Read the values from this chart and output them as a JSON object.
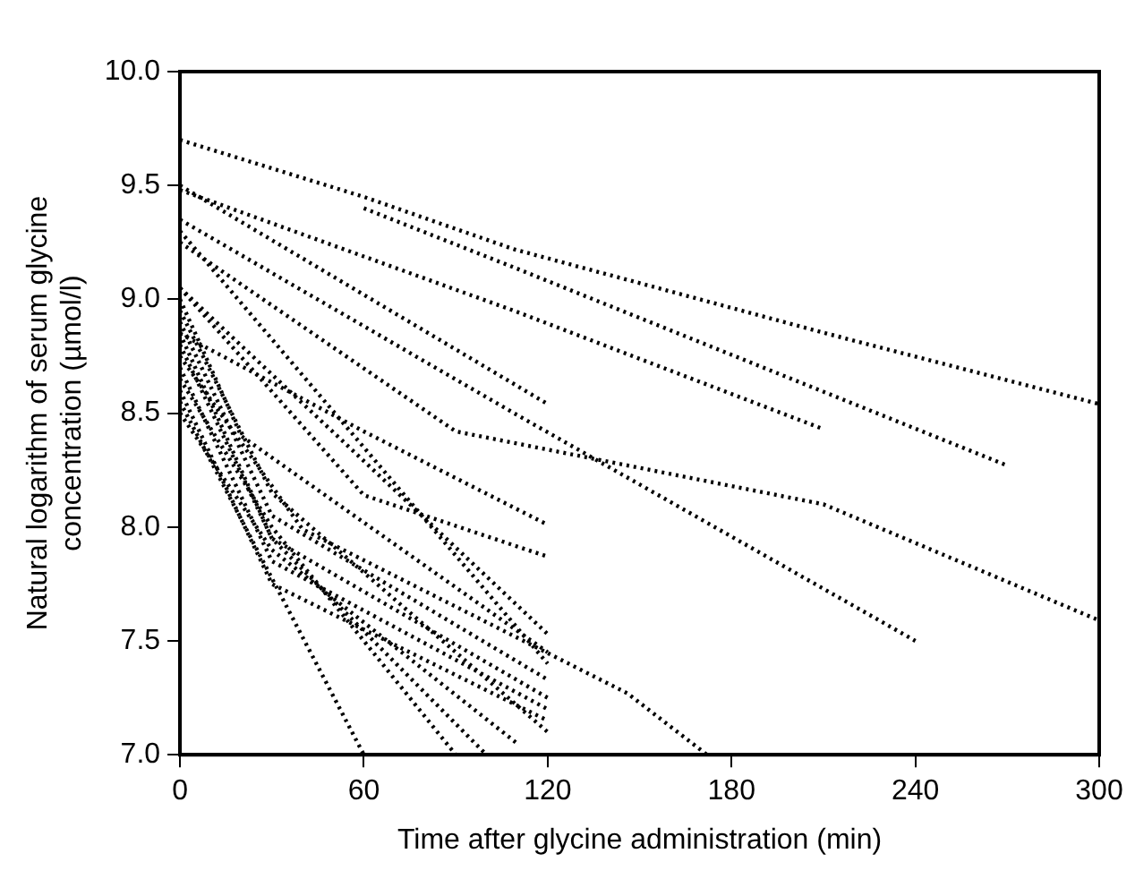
{
  "chart_data": {
    "type": "line",
    "xlabel": "Time after glycine administration (min)",
    "ylabel": "Natural logarithm of serum glycine concentration (µmol/l)",
    "xlim": [
      0,
      300
    ],
    "xticks": [
      0,
      60,
      120,
      180,
      240,
      300
    ],
    "ylim": [
      7,
      10
    ],
    "yticks": [
      {
        "value": 7,
        "label": "7.0"
      },
      {
        "value": 7.5,
        "label": "7.5"
      },
      {
        "value": 8,
        "label": "8.0"
      },
      {
        "value": 8.5,
        "label": "8.5"
      },
      {
        "value": 9,
        "label": "9.0"
      },
      {
        "value": 9.5,
        "label": "9.5"
      },
      {
        "value": 10,
        "label": "10.0"
      }
    ],
    "grid": false,
    "legend": false,
    "marker": "none",
    "line_style": "dotted",
    "series": [
      {
        "color": "#000000",
        "x": [
          0,
          60,
          109,
          211,
          300
        ],
        "values": [
          9.7,
          9.45,
          9.22,
          8.85,
          8.54
        ]
      },
      {
        "color": "#000000",
        "x": [
          60,
          109,
          270
        ],
        "values": [
          9.4,
          9.14,
          8.27
        ]
      },
      {
        "color": "#000000",
        "x": [
          0,
          109,
          210
        ],
        "values": [
          9.48,
          8.95,
          8.43
        ]
      },
      {
        "color": "#000000",
        "x": [
          0,
          90,
          210,
          300
        ],
        "values": [
          9.25,
          8.42,
          8.1,
          7.59
        ]
      },
      {
        "color": "#000000",
        "x": [
          0,
          109,
          240
        ],
        "values": [
          9.35,
          8.5,
          7.5
        ]
      },
      {
        "color": "#000000",
        "x": [
          0,
          120
        ],
        "values": [
          9.5,
          8.54
        ]
      },
      {
        "color": "#000000",
        "x": [
          0,
          60,
          120
        ],
        "values": [
          8.85,
          8.42,
          8.01
        ]
      },
      {
        "color": "#000000",
        "x": [
          0,
          60,
          120
        ],
        "values": [
          9.05,
          8.14,
          7.87
        ]
      },
      {
        "color": "#000000",
        "x": [
          0,
          120
        ],
        "values": [
          9.05,
          7.53
        ]
      },
      {
        "color": "#000000",
        "x": [
          0,
          40,
          146,
          172
        ],
        "values": [
          8.75,
          7.99,
          7.27,
          7.0
        ]
      },
      {
        "color": "#000000",
        "x": [
          0,
          60
        ],
        "values": [
          8.55,
          7.0
        ]
      },
      {
        "color": "#000000",
        "x": [
          0,
          30,
          90
        ],
        "values": [
          8.65,
          8.0,
          7.0
        ]
      },
      {
        "color": "#000000",
        "x": [
          0,
          120
        ],
        "values": [
          9.3,
          7.4
        ]
      },
      {
        "color": "#000000",
        "x": [
          0,
          30,
          120
        ],
        "values": [
          8.9,
          8.05,
          7.33
        ]
      },
      {
        "color": "#000000",
        "x": [
          0,
          30,
          120
        ],
        "values": [
          8.8,
          7.95,
          7.25
        ]
      },
      {
        "color": "#000000",
        "x": [
          0,
          30,
          120
        ],
        "values": [
          8.7,
          7.85,
          7.2
        ]
      },
      {
        "color": "#000000",
        "x": [
          0,
          30,
          120
        ],
        "values": [
          8.6,
          7.75,
          7.15
        ]
      },
      {
        "color": "#000000",
        "x": [
          0,
          30,
          120
        ],
        "values": [
          8.95,
          8.15,
          7.1
        ]
      },
      {
        "color": "#000000",
        "x": [
          0,
          30,
          110
        ],
        "values": [
          8.5,
          7.9,
          7.05
        ]
      },
      {
        "color": "#000000",
        "x": [
          0,
          30,
          100
        ],
        "values": [
          8.85,
          7.95,
          7.0
        ]
      },
      {
        "color": "#000000",
        "x": [
          0,
          20,
          120
        ],
        "values": [
          9.0,
          8.4,
          7.45
        ]
      }
    ]
  }
}
